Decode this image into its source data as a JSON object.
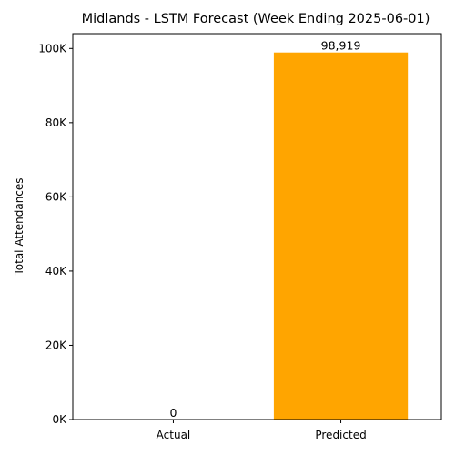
{
  "chart_data": {
    "type": "bar",
    "title": "Midlands - LSTM Forecast (Week Ending 2025-06-01)",
    "xlabel": "",
    "ylabel": "Total Attendances",
    "categories": [
      "Actual",
      "Predicted"
    ],
    "values": [
      0,
      98919
    ],
    "value_labels": [
      "0",
      "98,919"
    ],
    "ylim": [
      0,
      104000
    ],
    "yticks": [
      0,
      20000,
      40000,
      60000,
      80000,
      100000
    ],
    "ytick_labels": [
      "0K",
      "20K",
      "40K",
      "60K",
      "80K",
      "100K"
    ],
    "bar_colors": [
      "#1f77b4",
      "#ffa500"
    ],
    "grid": false,
    "legend": "none"
  }
}
